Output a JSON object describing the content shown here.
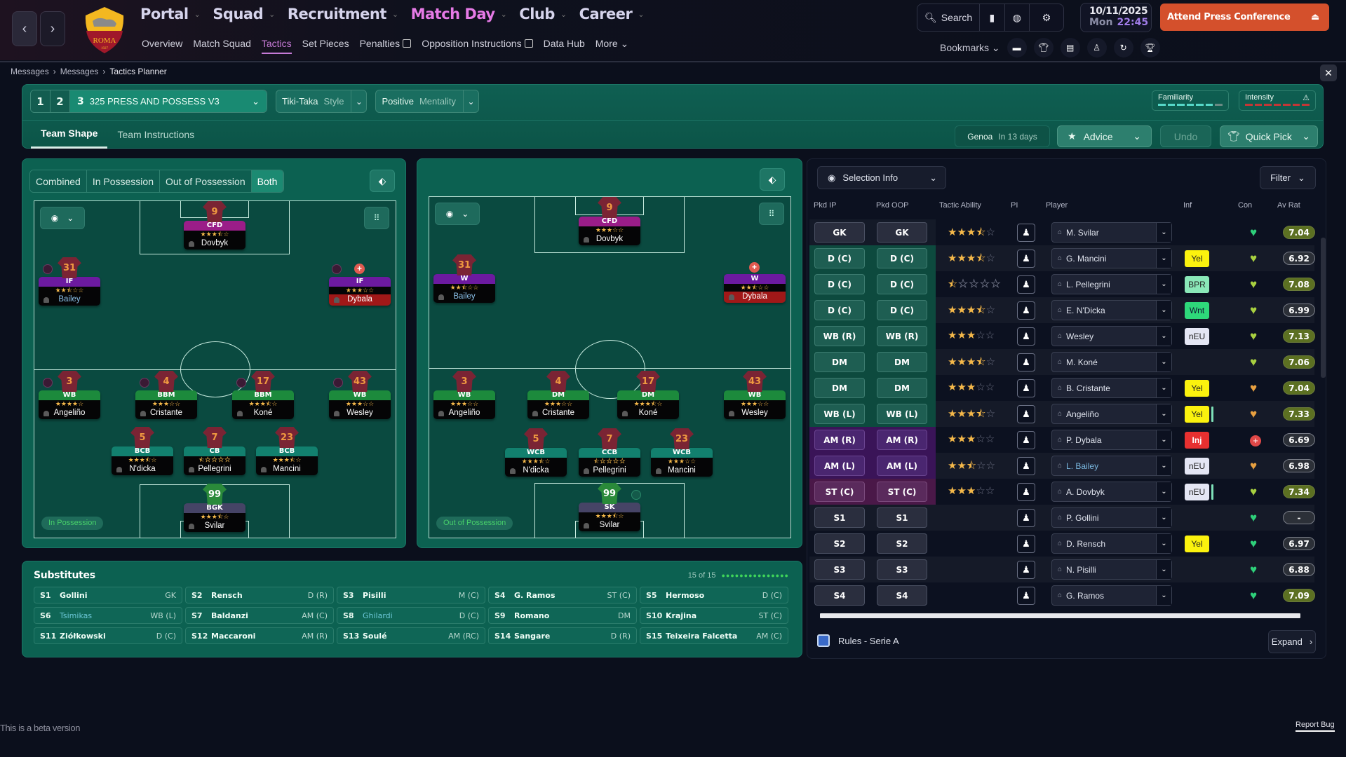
{
  "topbar": {
    "back_icon": "chevron-left",
    "forward_icon": "chevron-right",
    "club_crest": {
      "text": "ROMA",
      "year": "1927"
    },
    "main_nav": [
      {
        "label": "Portal",
        "active": false
      },
      {
        "label": "Squad",
        "active": false
      },
      {
        "label": "Recruitment",
        "active": false
      },
      {
        "label": "Match Day",
        "active": true
      },
      {
        "label": "Club",
        "active": false
      },
      {
        "label": "Career",
        "active": false
      }
    ],
    "sub_nav": [
      {
        "label": "Overview",
        "active": false,
        "external": false
      },
      {
        "label": "Match Squad",
        "active": false,
        "external": false
      },
      {
        "label": "Tactics",
        "active": true,
        "external": false
      },
      {
        "label": "Set Pieces",
        "active": false,
        "external": false
      },
      {
        "label": "Penalties",
        "active": false,
        "external": true
      },
      {
        "label": "Opposition Instructions",
        "active": false,
        "external": true
      },
      {
        "label": "Data Hub",
        "active": false,
        "external": false
      },
      {
        "label": "More",
        "active": false,
        "external": false
      }
    ],
    "search_label": "Search",
    "date": "10/11/2025",
    "day": "Mon",
    "time": "22:45",
    "press_button": "Attend Press Conference",
    "bookmarks_label": "Bookmarks",
    "bookmark_icons": [
      "chat-icon",
      "shirt-icon",
      "clipboard-icon",
      "staff-icon",
      "refresh-icon",
      "trophy-icon"
    ]
  },
  "breadcrumb": [
    "Messages",
    "Messages",
    "Tactics Planner"
  ],
  "tactic_header": {
    "slots": [
      "1",
      "2"
    ],
    "selected_slot": "3",
    "tactic_name": "325 PRESS AND POSSESS V3",
    "style_value": "Tiki-Taka",
    "style_label": "Style",
    "mentality_value": "Positive",
    "mentality_label": "Mentality",
    "familiarity_label": "Familiarity",
    "familiarity_bars": 7,
    "familiarity_filled": 6,
    "intensity_label": "Intensity",
    "intensity_bars": 7,
    "tabs": [
      {
        "label": "Team Shape",
        "active": true
      },
      {
        "label": "Team Instructions",
        "active": false
      }
    ],
    "next_opponent": "Genoa",
    "next_match_in": "In 13 days",
    "advice_label": "Advice",
    "undo_label": "Undo",
    "quick_pick_label": "Quick Pick"
  },
  "view_tabs": [
    {
      "label": "Combined",
      "active": false
    },
    {
      "label": "In Possession",
      "active": false
    },
    {
      "label": "Out of Possession",
      "active": false
    },
    {
      "label": "Both",
      "active": true
    }
  ],
  "pitch_in_possession": {
    "badge": "In Possession",
    "players": [
      {
        "num": "9",
        "role": "CFD",
        "stars": "★★★⯪☆",
        "name": "Dovbyk",
        "cat": "att"
      },
      {
        "num": "31",
        "role": "IF",
        "stars": "★★⯪☆☆",
        "name": "Bailey",
        "cat": "wng",
        "blue": true
      },
      {
        "num": "",
        "role": "IF",
        "stars": "★★★☆☆",
        "name": "Dybala",
        "cat": "wng",
        "injured": true
      },
      {
        "num": "3",
        "role": "WB",
        "stars": "★★★★☆",
        "name": "Angeliño",
        "cat": "mid"
      },
      {
        "num": "4",
        "role": "BBM",
        "stars": "★★★☆☆",
        "name": "Cristante",
        "cat": "mid"
      },
      {
        "num": "17",
        "role": "BBM",
        "stars": "★★★⯪☆",
        "name": "Koné",
        "cat": "mid"
      },
      {
        "num": "43",
        "role": "WB",
        "stars": "★★★☆☆",
        "name": "Wesley",
        "cat": "mid"
      },
      {
        "num": "5",
        "role": "BCB",
        "stars": "★★★⯪☆",
        "name": "N'dicka",
        "cat": "def"
      },
      {
        "num": "7",
        "role": "CB",
        "stars": "⯪☆☆☆☆",
        "name": "Pellegrini",
        "cat": "def"
      },
      {
        "num": "23",
        "role": "BCB",
        "stars": "★★★⯪☆",
        "name": "Mancini",
        "cat": "def"
      },
      {
        "num": "99",
        "role": "BGK",
        "stars": "★★★⯪☆",
        "name": "Svilar",
        "cat": "gk"
      }
    ]
  },
  "pitch_out_of_possession": {
    "badge": "Out of Possession",
    "players": [
      {
        "num": "9",
        "role": "CFD",
        "stars": "★★★☆☆",
        "name": "Dovbyk",
        "cat": "att"
      },
      {
        "num": "31",
        "role": "W",
        "stars": "★★⯪☆☆",
        "name": "Bailey",
        "cat": "wng",
        "blue": true
      },
      {
        "num": "",
        "role": "W",
        "stars": "★★⯪☆☆",
        "name": "Dybala",
        "cat": "wng",
        "injured": true
      },
      {
        "num": "3",
        "role": "WB",
        "stars": "★★★☆☆",
        "name": "Angeliño",
        "cat": "mid"
      },
      {
        "num": "4",
        "role": "DM",
        "stars": "★★★☆☆",
        "name": "Cristante",
        "cat": "mid"
      },
      {
        "num": "17",
        "role": "DM",
        "stars": "★★★⯪☆",
        "name": "Koné",
        "cat": "mid"
      },
      {
        "num": "43",
        "role": "WB",
        "stars": "★★★☆☆",
        "name": "Wesley",
        "cat": "mid"
      },
      {
        "num": "5",
        "role": "WCB",
        "stars": "★★★⯪☆",
        "name": "N'dicka",
        "cat": "def"
      },
      {
        "num": "7",
        "role": "CCB",
        "stars": "⯪☆☆☆☆",
        "name": "Pellegrini",
        "cat": "def"
      },
      {
        "num": "23",
        "role": "WCB",
        "stars": "★★★☆☆",
        "name": "Mancini",
        "cat": "def"
      },
      {
        "num": "99",
        "role": "SK",
        "stars": "★★★⯪☆",
        "name": "Svilar",
        "cat": "gk"
      }
    ]
  },
  "substitutes": {
    "title": "Substitutes",
    "count": "15 of 15",
    "dots": "●●●●●●●●●●●●●●●",
    "list": [
      {
        "slot": "S1",
        "name": "Gollini",
        "pos": "GK"
      },
      {
        "slot": "S2",
        "name": "Rensch",
        "pos": "D (R)"
      },
      {
        "slot": "S3",
        "name": "Pisilli",
        "pos": "M (C)"
      },
      {
        "slot": "S4",
        "name": "G. Ramos",
        "pos": "ST (C)"
      },
      {
        "slot": "S5",
        "name": "Hermoso",
        "pos": "D (C)"
      },
      {
        "slot": "S6",
        "name": "Tsimikas",
        "pos": "WB (L)",
        "blue": true
      },
      {
        "slot": "S7",
        "name": "Baldanzi",
        "pos": "AM (C)"
      },
      {
        "slot": "S8",
        "name": "Ghilardi",
        "pos": "D (C)",
        "blue": true
      },
      {
        "slot": "S9",
        "name": "Romano",
        "pos": "DM"
      },
      {
        "slot": "S10",
        "name": "Krajina",
        "pos": "ST (C)"
      },
      {
        "slot": "S11",
        "name": "Ziółkowski",
        "pos": "D (C)"
      },
      {
        "slot": "S12",
        "name": "Maccaroni",
        "pos": "AM (R)"
      },
      {
        "slot": "S13",
        "name": "Soulé",
        "pos": "AM (RC)"
      },
      {
        "slot": "S14",
        "name": "Sangare",
        "pos": "D (R)"
      },
      {
        "slot": "S15",
        "name": "Teixeira Falcetta",
        "pos": "AM (C)"
      }
    ]
  },
  "selection_panel": {
    "selection_info_label": "Selection Info",
    "filter_label": "Filter",
    "columns": [
      "Pkd IP",
      "Pkd OOP",
      "Tactic Ability",
      "PI",
      "Player",
      "Inf",
      "Con",
      "Av Rat"
    ],
    "rows": [
      {
        "ip": "GK",
        "oop": "GK",
        "cat": "gk",
        "stars": 3.5,
        "player": "M. Svilar",
        "inf": "",
        "con": "green",
        "rat": "7.04",
        "rat_good": true
      },
      {
        "ip": "D (C)",
        "oop": "D (C)",
        "cat": "def",
        "stars": 3.5,
        "player": "G. Mancini",
        "inf": "Yel",
        "con": "lime",
        "rat": "6.92",
        "rat_good": false
      },
      {
        "ip": "D (C)",
        "oop": "D (C)",
        "cat": "def",
        "stars": 0.5,
        "player": "L. Pellegrini",
        "inf": "BPR",
        "con": "lime",
        "rat": "7.08",
        "rat_good": true
      },
      {
        "ip": "D (C)",
        "oop": "D (C)",
        "cat": "def",
        "stars": 3.5,
        "player": "E. N'Dicka",
        "inf": "Wnt",
        "con": "lime",
        "rat": "6.99",
        "rat_good": false
      },
      {
        "ip": "WB (R)",
        "oop": "WB (R)",
        "cat": "def",
        "stars": 3,
        "player": "Wesley",
        "inf": "nEU",
        "con": "lime",
        "rat": "7.13",
        "rat_good": true
      },
      {
        "ip": "DM",
        "oop": "DM",
        "cat": "def",
        "stars": 3.5,
        "player": "M. Koné",
        "inf": "",
        "con": "lime",
        "rat": "7.06",
        "rat_good": true
      },
      {
        "ip": "DM",
        "oop": "DM",
        "cat": "def",
        "stars": 3,
        "player": "B. Cristante",
        "inf": "Yel",
        "con": "orange",
        "rat": "7.04",
        "rat_good": true
      },
      {
        "ip": "WB (L)",
        "oop": "WB (L)",
        "cat": "def",
        "stars": 3.5,
        "player": "Angeliño",
        "inf": "Yel",
        "inf_bar": true,
        "con": "orange",
        "rat": "7.33",
        "rat_good": true
      },
      {
        "ip": "AM (R)",
        "oop": "AM (R)",
        "cat": "am",
        "stars": 3,
        "player": "P. Dybala",
        "inf": "Inj",
        "con": "injury",
        "rat": "6.69",
        "rat_good": false
      },
      {
        "ip": "AM (L)",
        "oop": "AM (L)",
        "cat": "am",
        "stars": 2.5,
        "player": "L. Bailey",
        "player_blue": true,
        "inf": "nEU",
        "con": "orange",
        "rat": "6.98",
        "rat_good": false
      },
      {
        "ip": "ST (C)",
        "oop": "ST (C)",
        "cat": "st",
        "stars": 3,
        "player": "A. Dovbyk",
        "inf": "nEU",
        "inf_bar": true,
        "con": "lime",
        "rat": "7.34",
        "rat_good": true
      },
      {
        "ip": "S1",
        "oop": "S1",
        "cat": "gk",
        "stars": null,
        "player": "P. Gollini",
        "inf": "",
        "con": "green",
        "rat": "-",
        "rat_good": false
      },
      {
        "ip": "S2",
        "oop": "S2",
        "cat": "gk",
        "stars": null,
        "player": "D. Rensch",
        "inf": "Yel",
        "con": "green",
        "rat": "6.97",
        "rat_good": false
      },
      {
        "ip": "S3",
        "oop": "S3",
        "cat": "gk",
        "stars": null,
        "player": "N. Pisilli",
        "inf": "",
        "con": "green",
        "rat": "6.88",
        "rat_good": false
      },
      {
        "ip": "S4",
        "oop": "S4",
        "cat": "gk",
        "stars": null,
        "player": "G. Ramos",
        "inf": "",
        "con": "green",
        "rat": "7.09",
        "rat_good": true
      }
    ],
    "rules_label": "Rules - Serie A",
    "expand_label": "Expand"
  },
  "footer": {
    "beta_text": "This is a beta version",
    "report_bug": "Report Bug"
  },
  "colors": {
    "accent_press": "#d4502c",
    "active_nav": "#e67ae6",
    "panel_green": "#0c6151",
    "pitch_green": "#0a4a40"
  }
}
